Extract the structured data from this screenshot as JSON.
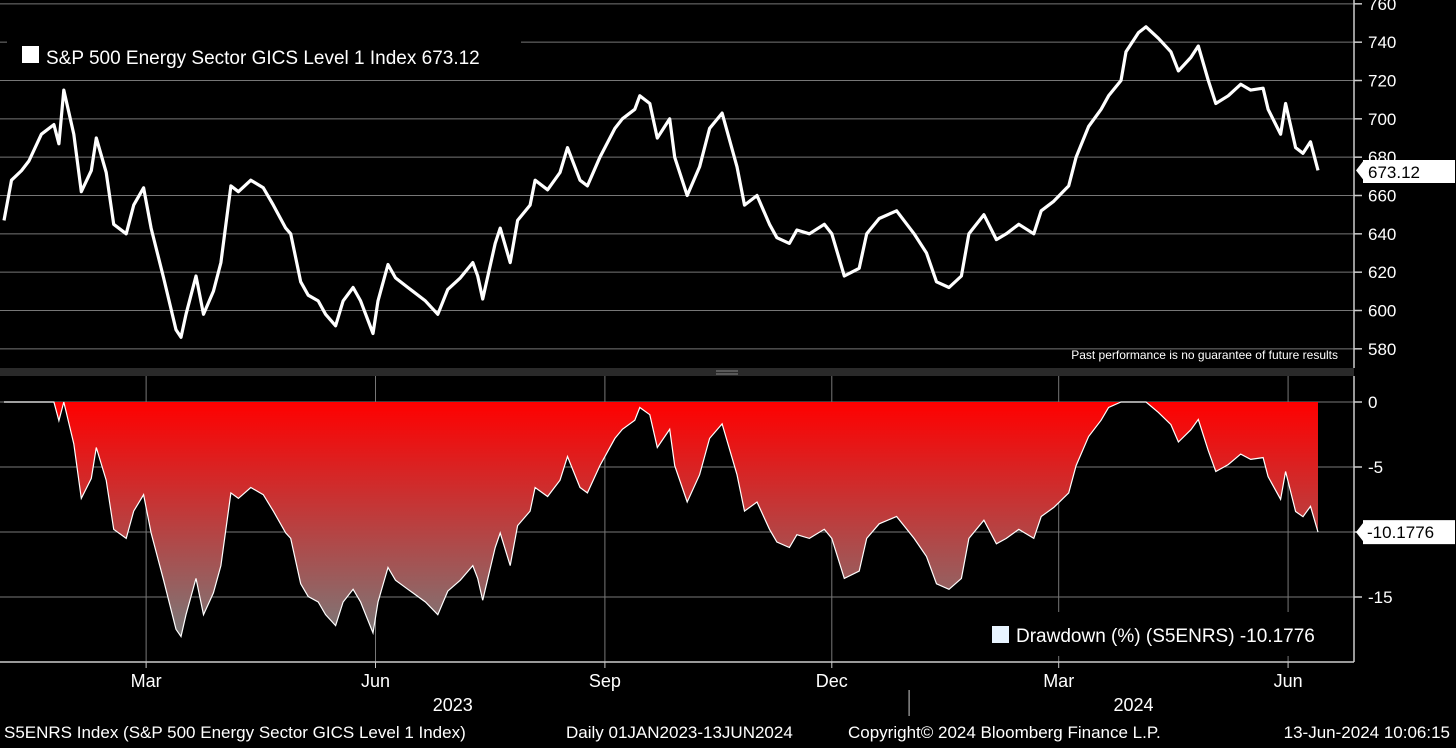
{
  "legend_top": "S&P 500 Energy Sector GICS Level 1 Index 673.12",
  "disclaimer": "Past performance is no guarantee of future results",
  "legend_bottom": "Drawdown (%) (S5ENRS) -10.1776",
  "footer": {
    "left": "S5ENRS Index (S&P 500 Energy Sector GICS Level 1 Index)",
    "middle": "Daily 01JAN2023-13JUN2024",
    "copyright": "Copyright© 2024 Bloomberg Finance L.P.",
    "timestamp": "13-Jun-2024 10:06:15"
  },
  "colors": {
    "background": "#000000",
    "price_line": "#ffffff",
    "drawdown_top": "#ff0000",
    "drawdown_bottom": "#7a7a7a",
    "grid": "#777777"
  },
  "chart_data": [
    {
      "type": "line",
      "title": "",
      "series": [
        {
          "name": "S&P 500 Energy Sector GICS Level 1 Index",
          "last_value": "673.12",
          "points": [
            [
              "2023-01-03",
              647
            ],
            [
              "2023-01-06",
              668
            ],
            [
              "2023-01-10",
              673
            ],
            [
              "2023-01-13",
              678
            ],
            [
              "2023-01-18",
              692
            ],
            [
              "2023-01-23",
              697
            ],
            [
              "2023-01-25",
              687
            ],
            [
              "2023-01-27",
              715
            ],
            [
              "2023-01-31",
              692
            ],
            [
              "2023-02-03",
              662
            ],
            [
              "2023-02-07",
              673
            ],
            [
              "2023-02-09",
              690
            ],
            [
              "2023-02-13",
              672
            ],
            [
              "2023-02-16",
              645
            ],
            [
              "2023-02-21",
              640
            ],
            [
              "2023-02-24",
              655
            ],
            [
              "2023-02-28",
              664
            ],
            [
              "2023-03-03",
              643
            ],
            [
              "2023-03-08",
              617
            ],
            [
              "2023-03-13",
              590
            ],
            [
              "2023-03-15",
              586
            ],
            [
              "2023-03-17",
              598
            ],
            [
              "2023-03-21",
              618
            ],
            [
              "2023-03-24",
              598
            ],
            [
              "2023-03-28",
              610
            ],
            [
              "2023-03-31",
              625
            ],
            [
              "2023-04-04",
              665
            ],
            [
              "2023-04-07",
              662
            ],
            [
              "2023-04-12",
              668
            ],
            [
              "2023-04-17",
              664
            ],
            [
              "2023-04-21",
              655
            ],
            [
              "2023-04-26",
              643
            ],
            [
              "2023-04-28",
              640
            ],
            [
              "2023-05-02",
              615
            ],
            [
              "2023-05-05",
              608
            ],
            [
              "2023-05-09",
              605
            ],
            [
              "2023-05-12",
              598
            ],
            [
              "2023-05-16",
              592
            ],
            [
              "2023-05-19",
              605
            ],
            [
              "2023-05-23",
              612
            ],
            [
              "2023-05-26",
              605
            ],
            [
              "2023-05-31",
              588
            ],
            [
              "2023-06-02",
              605
            ],
            [
              "2023-06-06",
              624
            ],
            [
              "2023-06-09",
              617
            ],
            [
              "2023-06-14",
              612
            ],
            [
              "2023-06-16",
              610
            ],
            [
              "2023-06-21",
              605
            ],
            [
              "2023-06-26",
              598
            ],
            [
              "2023-06-30",
              611
            ],
            [
              "2023-07-05",
              617
            ],
            [
              "2023-07-10",
              625
            ],
            [
              "2023-07-12",
              618
            ],
            [
              "2023-07-14",
              606
            ],
            [
              "2023-07-19",
              635
            ],
            [
              "2023-07-21",
              643
            ],
            [
              "2023-07-25",
              625
            ],
            [
              "2023-07-28",
              647
            ],
            [
              "2023-08-02",
              655
            ],
            [
              "2023-08-04",
              668
            ],
            [
              "2023-08-09",
              663
            ],
            [
              "2023-08-14",
              672
            ],
            [
              "2023-08-17",
              685
            ],
            [
              "2023-08-22",
              668
            ],
            [
              "2023-08-25",
              665
            ],
            [
              "2023-08-30",
              680
            ],
            [
              "2023-09-05",
              695
            ],
            [
              "2023-09-08",
              700
            ],
            [
              "2023-09-13",
              705
            ],
            [
              "2023-09-15",
              712
            ],
            [
              "2023-09-19",
              708
            ],
            [
              "2023-09-22",
              690
            ],
            [
              "2023-09-27",
              700
            ],
            [
              "2023-09-29",
              680
            ],
            [
              "2023-10-04",
              660
            ],
            [
              "2023-10-09",
              675
            ],
            [
              "2023-10-13",
              695
            ],
            [
              "2023-10-18",
              703
            ],
            [
              "2023-10-24",
              675
            ],
            [
              "2023-10-27",
              655
            ],
            [
              "2023-11-01",
              660
            ],
            [
              "2023-11-06",
              645
            ],
            [
              "2023-11-09",
              638
            ],
            [
              "2023-11-14",
              635
            ],
            [
              "2023-11-17",
              642
            ],
            [
              "2023-11-22",
              640
            ],
            [
              "2023-11-28",
              645
            ],
            [
              "2023-12-01",
              640
            ],
            [
              "2023-12-06",
              618
            ],
            [
              "2023-12-12",
              622
            ],
            [
              "2023-12-15",
              640
            ],
            [
              "2023-12-20",
              648
            ],
            [
              "2023-12-27",
              652
            ],
            [
              "2024-01-03",
              640
            ],
            [
              "2024-01-08",
              630
            ],
            [
              "2024-01-12",
              615
            ],
            [
              "2024-01-17",
              612
            ],
            [
              "2024-01-22",
              618
            ],
            [
              "2024-01-25",
              640
            ],
            [
              "2024-01-31",
              650
            ],
            [
              "2024-02-05",
              637
            ],
            [
              "2024-02-09",
              640
            ],
            [
              "2024-02-14",
              645
            ],
            [
              "2024-02-20",
              640
            ],
            [
              "2024-02-23",
              652
            ],
            [
              "2024-02-28",
              657
            ],
            [
              "2024-03-05",
              665
            ],
            [
              "2024-03-08",
              680
            ],
            [
              "2024-03-13",
              696
            ],
            [
              "2024-03-18",
              705
            ],
            [
              "2024-03-21",
              712
            ],
            [
              "2024-03-26",
              720
            ],
            [
              "2024-03-28",
              735
            ],
            [
              "2024-04-02",
              745
            ],
            [
              "2024-04-05",
              748
            ],
            [
              "2024-04-10",
              742
            ],
            [
              "2024-04-15",
              735
            ],
            [
              "2024-04-18",
              725
            ],
            [
              "2024-04-23",
              732
            ],
            [
              "2024-04-26",
              738
            ],
            [
              "2024-04-30",
              720
            ],
            [
              "2024-05-03",
              708
            ],
            [
              "2024-05-08",
              712
            ],
            [
              "2024-05-13",
              718
            ],
            [
              "2024-05-17",
              715
            ],
            [
              "2024-05-22",
              716
            ],
            [
              "2024-05-24",
              705
            ],
            [
              "2024-05-29",
              692
            ],
            [
              "2024-05-31",
              708
            ],
            [
              "2024-06-04",
              685
            ],
            [
              "2024-06-07",
              682
            ],
            [
              "2024-06-10",
              688
            ],
            [
              "2024-06-13",
              673.12
            ]
          ]
        }
      ],
      "yticks": [
        580,
        600,
        620,
        640,
        660,
        680,
        700,
        720,
        740,
        760
      ],
      "ylim": [
        570,
        762
      ],
      "x_range": [
        "2023-01-01",
        "2024-06-14"
      ],
      "grid": true,
      "legend_position": "top-left"
    },
    {
      "type": "area",
      "title": "",
      "series": [
        {
          "name": "Drawdown (%) (S5ENRS)",
          "last_value": "-10.1776",
          "derived_from": "running maximum of the index series"
        }
      ],
      "yticks": [
        0,
        -5,
        -10,
        -15
      ],
      "ylim": [
        -20,
        2
      ],
      "grid": true,
      "legend_position": "bottom-right"
    }
  ],
  "x_axis": {
    "months": [
      {
        "label": "Mar",
        "date": "2023-03-01"
      },
      {
        "label": "Jun",
        "date": "2023-06-01"
      },
      {
        "label": "Sep",
        "date": "2023-09-01"
      },
      {
        "label": "Dec",
        "date": "2023-12-01"
      },
      {
        "label": "Mar",
        "date": "2024-03-01"
      },
      {
        "label": "Jun",
        "date": "2024-06-01"
      }
    ],
    "years": [
      {
        "label": "2023",
        "date": "2023-07-02"
      },
      {
        "label": "2024",
        "date": "2024-03-31"
      }
    ],
    "year_divider": "2024-01-01"
  }
}
